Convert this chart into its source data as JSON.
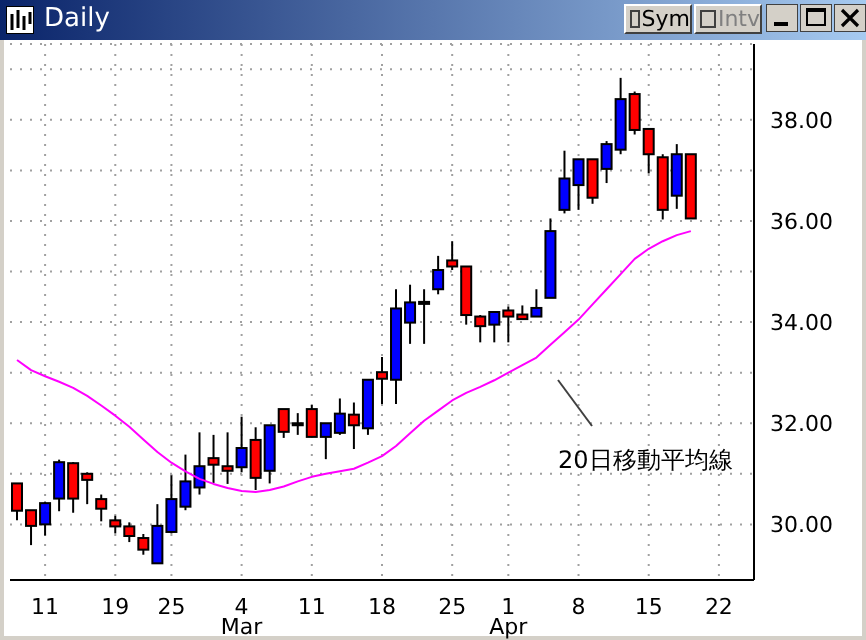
{
  "chart_data": {
    "type": "candlestick",
    "title": "Daily",
    "categories": [
      null,
      null,
      "11",
      null,
      null,
      null,
      null,
      "19",
      null,
      null,
      null,
      "25",
      null,
      null,
      null,
      null,
      "4\nMar",
      null,
      null,
      null,
      null,
      "11",
      null,
      null,
      null,
      null,
      "18",
      null,
      null,
      null,
      null,
      "25",
      null,
      null,
      null,
      "1\nApr",
      null,
      null,
      null,
      null,
      "8",
      null,
      null,
      null,
      null,
      "15",
      null,
      null,
      null,
      null,
      "22",
      null,
      null
    ],
    "ohlc": [
      [
        30.81,
        30.81,
        30.08,
        30.27
      ],
      [
        30.28,
        30.28,
        29.59,
        29.97
      ],
      [
        30.0,
        30.45,
        29.78,
        30.42
      ],
      [
        30.51,
        31.28,
        30.26,
        31.23
      ],
      [
        31.21,
        31.23,
        30.23,
        30.51
      ],
      [
        31.0,
        31.03,
        30.4,
        30.88
      ],
      [
        30.5,
        30.59,
        30.06,
        30.31
      ],
      [
        30.08,
        30.17,
        29.82,
        29.96
      ],
      [
        29.96,
        30.04,
        29.65,
        29.77
      ],
      [
        29.73,
        29.81,
        29.4,
        29.5
      ],
      [
        29.23,
        30.4,
        29.23,
        29.97
      ],
      [
        29.85,
        30.97,
        29.82,
        30.5
      ],
      [
        30.35,
        31.38,
        30.28,
        30.85
      ],
      [
        30.73,
        31.82,
        30.59,
        31.15
      ],
      [
        31.31,
        31.77,
        30.82,
        31.18
      ],
      [
        31.15,
        31.82,
        30.8,
        31.06
      ],
      [
        31.13,
        32.13,
        31.03,
        31.51
      ],
      [
        31.67,
        31.92,
        30.68,
        30.92
      ],
      [
        31.06,
        31.96,
        30.81,
        31.96
      ],
      [
        32.28,
        32.28,
        31.71,
        31.83
      ],
      [
        31.99,
        32.2,
        31.77,
        32.0
      ],
      [
        32.28,
        32.36,
        31.72,
        31.73
      ],
      [
        31.73,
        32.0,
        31.29,
        32.0
      ],
      [
        31.81,
        32.49,
        31.77,
        32.19
      ],
      [
        32.17,
        32.41,
        31.49,
        31.96
      ],
      [
        31.9,
        32.86,
        31.77,
        32.86
      ],
      [
        33.01,
        33.31,
        32.38,
        32.88
      ],
      [
        32.86,
        34.65,
        32.38,
        34.27
      ],
      [
        33.99,
        34.74,
        33.57,
        34.39
      ],
      [
        34.38,
        34.65,
        33.57,
        34.4
      ],
      [
        34.65,
        35.31,
        34.55,
        35.03
      ],
      [
        35.22,
        35.6,
        35.03,
        35.1
      ],
      [
        35.1,
        35.1,
        33.95,
        34.14
      ],
      [
        34.11,
        34.14,
        33.6,
        33.92
      ],
      [
        33.95,
        34.2,
        33.6,
        34.2
      ],
      [
        34.23,
        34.31,
        33.6,
        34.11
      ],
      [
        34.15,
        34.33,
        34.06,
        34.06
      ],
      [
        34.11,
        34.65,
        34.11,
        34.28
      ],
      [
        34.48,
        36.05,
        34.48,
        35.8
      ],
      [
        36.22,
        37.39,
        36.15,
        36.84
      ],
      [
        36.71,
        37.22,
        36.22,
        37.22
      ],
      [
        37.22,
        37.22,
        36.34,
        36.46
      ],
      [
        37.03,
        37.58,
        36.75,
        37.52
      ],
      [
        37.41,
        38.83,
        37.32,
        38.41
      ],
      [
        38.51,
        38.56,
        37.71,
        37.8
      ],
      [
        37.82,
        37.82,
        36.94,
        37.32
      ],
      [
        37.26,
        37.32,
        36.03,
        36.22
      ],
      [
        36.5,
        37.52,
        36.24,
        37.32
      ],
      [
        37.32,
        37.32,
        36.05,
        36.05
      ],
      null,
      null,
      null,
      null
    ],
    "colors": [
      "#ff0000",
      "#ff0000",
      "#0000ff",
      "#0000ff",
      "#ff0000",
      "#ff0000",
      "#ff0000",
      "#ff0000",
      "#ff0000",
      "#ff0000",
      "#0000ff",
      "#0000ff",
      "#0000ff",
      "#0000ff",
      "#ff0000",
      "#ff0000",
      "#0000ff",
      "#ff0000",
      "#0000ff",
      "#ff0000",
      "#0000ff",
      "#ff0000",
      "#0000ff",
      "#0000ff",
      "#ff0000",
      "#0000ff",
      "#ff0000",
      "#0000ff",
      "#0000ff",
      "#0000ff",
      "#0000ff",
      "#ff0000",
      "#ff0000",
      "#ff0000",
      "#0000ff",
      "#ff0000",
      "#ff0000",
      "#0000ff",
      "#0000ff",
      "#0000ff",
      "#0000ff",
      "#ff0000",
      "#0000ff",
      "#0000ff",
      "#ff0000",
      "#ff0000",
      "#ff0000",
      "#0000ff",
      "#ff0000",
      null,
      null,
      null,
      null
    ],
    "series": [
      {
        "type": "line",
        "color": "#ff00ff",
        "values": [
          33.25,
          33.05,
          32.93,
          32.82,
          32.7,
          32.54,
          32.35,
          32.15,
          31.93,
          31.68,
          31.43,
          31.22,
          31.05,
          30.9,
          30.8,
          30.72,
          30.66,
          30.64,
          30.68,
          30.75,
          30.85,
          30.94,
          31.0,
          31.05,
          31.1,
          31.22,
          31.35,
          31.55,
          31.8,
          32.05,
          32.25,
          32.45,
          32.6,
          32.72,
          32.85,
          33.0,
          33.15,
          33.3,
          33.55,
          33.8,
          34.05,
          34.35,
          34.65,
          34.95,
          35.25,
          35.45,
          35.6,
          35.72,
          35.8,
          null,
          null,
          null,
          null
        ]
      }
    ],
    "ylim": [
      28.9,
      39.5
    ],
    "yticks": [
      {
        "value": 30,
        "label": "30.00"
      },
      {
        "value": 31,
        "label": null
      },
      {
        "value": 32,
        "label": "32.00"
      },
      {
        "value": 33,
        "label": null
      },
      {
        "value": 34,
        "label": "34.00"
      },
      {
        "value": 35,
        "label": null
      },
      {
        "value": 36,
        "label": "36.00"
      },
      {
        "value": 37,
        "label": null
      },
      {
        "value": 38,
        "label": "38.00"
      },
      {
        "value": 39,
        "label": null
      }
    ],
    "grid": true,
    "annotations": [
      "20日移動平均線",
      "Sym",
      "Intv"
    ]
  }
}
